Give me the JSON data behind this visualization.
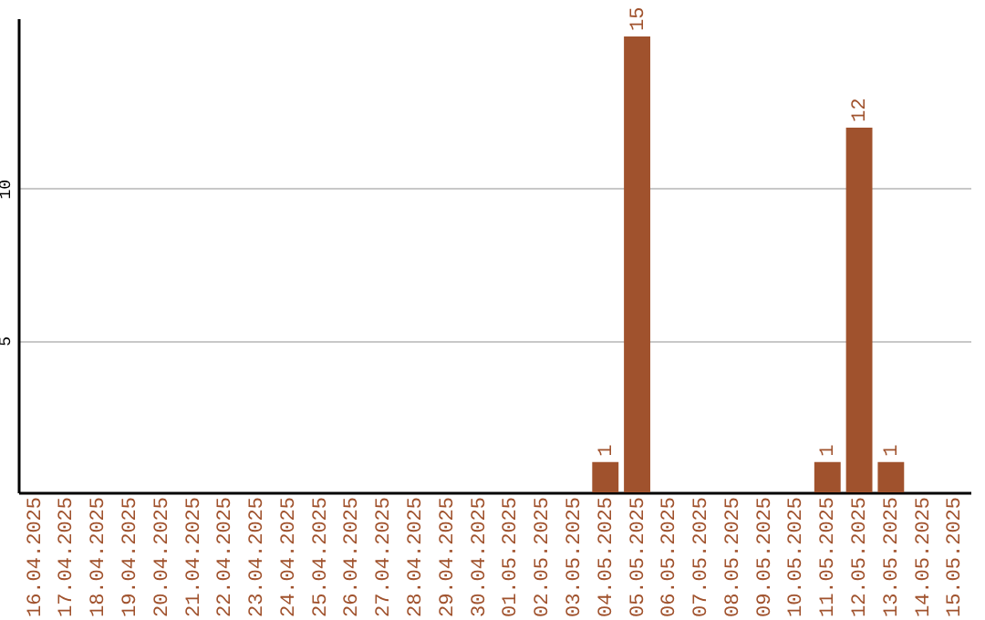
{
  "chart_data": {
    "type": "bar",
    "categories": [
      "16.04.2025",
      "17.04.2025",
      "18.04.2025",
      "19.04.2025",
      "20.04.2025",
      "21.04.2025",
      "22.04.2025",
      "23.04.2025",
      "24.04.2025",
      "25.04.2025",
      "26.04.2025",
      "27.04.2025",
      "28.04.2025",
      "29.04.2025",
      "30.04.2025",
      "01.05.2025",
      "02.05.2025",
      "03.05.2025",
      "04.05.2025",
      "05.05.2025",
      "06.05.2025",
      "07.05.2025",
      "08.05.2025",
      "09.05.2025",
      "10.05.2025",
      "11.05.2025",
      "12.05.2025",
      "13.05.2025",
      "14.05.2025",
      "15.05.2025"
    ],
    "values": [
      0,
      0,
      0,
      0,
      0,
      0,
      0,
      0,
      0,
      0,
      0,
      0,
      0,
      0,
      0,
      0,
      0,
      0,
      1,
      15,
      0,
      0,
      0,
      0,
      0,
      1,
      12,
      1,
      0,
      0
    ],
    "value_labels": [
      null,
      null,
      null,
      null,
      null,
      null,
      null,
      null,
      null,
      null,
      null,
      null,
      null,
      null,
      null,
      null,
      null,
      null,
      "1",
      "15",
      null,
      null,
      null,
      null,
      null,
      "1",
      "12",
      "1",
      null,
      null
    ],
    "color": "#a0522d",
    "ylim": [
      0,
      15.6
    ],
    "yticks": [
      5,
      10
    ],
    "grid": "y"
  }
}
